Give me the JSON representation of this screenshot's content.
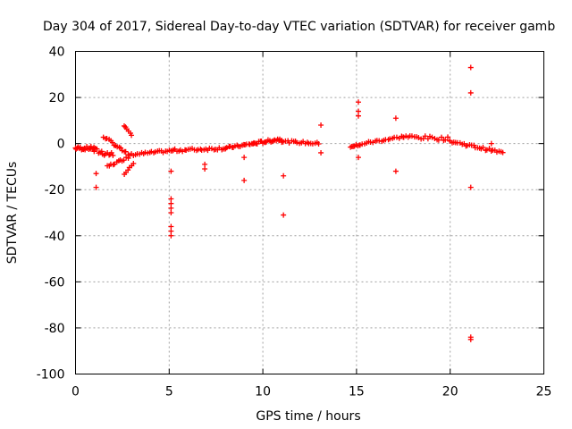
{
  "chart_data": {
    "type": "scatter",
    "title": "Day 304 of 2017, Sidereal Day-to-day VTEC variation (SDTVAR) for receiver gamb",
    "xlabel": "GPS time / hours",
    "ylabel": "SDTVAR / TECUs",
    "xlim": [
      0,
      25
    ],
    "ylim": [
      -100,
      40
    ],
    "xticks": [
      "0",
      "5",
      "10",
      "15",
      "20",
      "25"
    ],
    "yticks": [
      "-100",
      "-80",
      "-60",
      "-40",
      "-20",
      "0",
      "20",
      "40"
    ],
    "grid": true,
    "marker": "+",
    "color": "#ff0000",
    "clusters": [
      {
        "x0": 0.0,
        "x1": 1.0,
        "y0": -2,
        "y1": -2,
        "n": 20,
        "spread": 1.5
      },
      {
        "x0": 1.0,
        "x1": 2.0,
        "y0": -3,
        "y1": -5,
        "n": 14,
        "spread": 2.5
      },
      {
        "x0": 1.5,
        "x1": 2.7,
        "y0": 3,
        "y1": -4,
        "n": 14,
        "spread": 1.0
      },
      {
        "x0": 1.7,
        "x1": 2.8,
        "y0": -10,
        "y1": -6,
        "n": 12,
        "spread": 1.0
      },
      {
        "x0": 2.6,
        "x1": 3.0,
        "y0": 8,
        "y1": 4,
        "n": 6,
        "spread": 0.8
      },
      {
        "x0": 2.6,
        "x1": 3.1,
        "y0": -13,
        "y1": -9,
        "n": 6,
        "spread": 0.8
      },
      {
        "x0": 2.8,
        "x1": 5.2,
        "y0": -5,
        "y1": -3,
        "n": 24,
        "spread": 1.0
      },
      {
        "x0": 5.2,
        "x1": 8.0,
        "y0": -3,
        "y1": -2,
        "n": 28,
        "spread": 1.2
      },
      {
        "x0": 8.0,
        "x1": 9.5,
        "y0": -2,
        "y1": 0,
        "n": 18,
        "spread": 1.0
      },
      {
        "x0": 9.5,
        "x1": 11.0,
        "y0": 0,
        "y1": 2,
        "n": 22,
        "spread": 1.2
      },
      {
        "x0": 11.0,
        "x1": 13.0,
        "y0": 1,
        "y1": 0,
        "n": 20,
        "spread": 1.0
      },
      {
        "x0": 14.7,
        "x1": 15.2,
        "y0": -1,
        "y1": -1,
        "n": 8,
        "spread": 1.5
      },
      {
        "x0": 15.3,
        "x1": 17.5,
        "y0": 0,
        "y1": 3,
        "n": 20,
        "spread": 1.0
      },
      {
        "x0": 17.5,
        "x1": 20.0,
        "y0": 3,
        "y1": 2,
        "n": 22,
        "spread": 1.5
      },
      {
        "x0": 20.0,
        "x1": 22.8,
        "y0": 1,
        "y1": -4,
        "n": 28,
        "spread": 1.2
      }
    ],
    "points": [
      {
        "x": 1.1,
        "y": -13
      },
      {
        "x": 1.1,
        "y": -19
      },
      {
        "x": 5.1,
        "y": -12
      },
      {
        "x": 5.1,
        "y": -24
      },
      {
        "x": 5.1,
        "y": -26
      },
      {
        "x": 5.1,
        "y": -28
      },
      {
        "x": 5.1,
        "y": -30
      },
      {
        "x": 5.1,
        "y": -36
      },
      {
        "x": 5.1,
        "y": -38
      },
      {
        "x": 5.1,
        "y": -40
      },
      {
        "x": 6.9,
        "y": -9
      },
      {
        "x": 6.9,
        "y": -11
      },
      {
        "x": 9.0,
        "y": -6
      },
      {
        "x": 9.0,
        "y": -16
      },
      {
        "x": 11.1,
        "y": -14
      },
      {
        "x": 11.1,
        "y": -31
      },
      {
        "x": 13.1,
        "y": 8
      },
      {
        "x": 13.1,
        "y": -4
      },
      {
        "x": 15.1,
        "y": 18
      },
      {
        "x": 15.1,
        "y": 14
      },
      {
        "x": 15.1,
        "y": 12
      },
      {
        "x": 15.1,
        "y": -6
      },
      {
        "x": 17.1,
        "y": 11
      },
      {
        "x": 17.1,
        "y": -12
      },
      {
        "x": 21.1,
        "y": 33
      },
      {
        "x": 21.1,
        "y": 22
      },
      {
        "x": 21.1,
        "y": -19
      },
      {
        "x": 21.1,
        "y": -84
      },
      {
        "x": 21.1,
        "y": -85
      },
      {
        "x": 22.2,
        "y": 0
      }
    ]
  }
}
